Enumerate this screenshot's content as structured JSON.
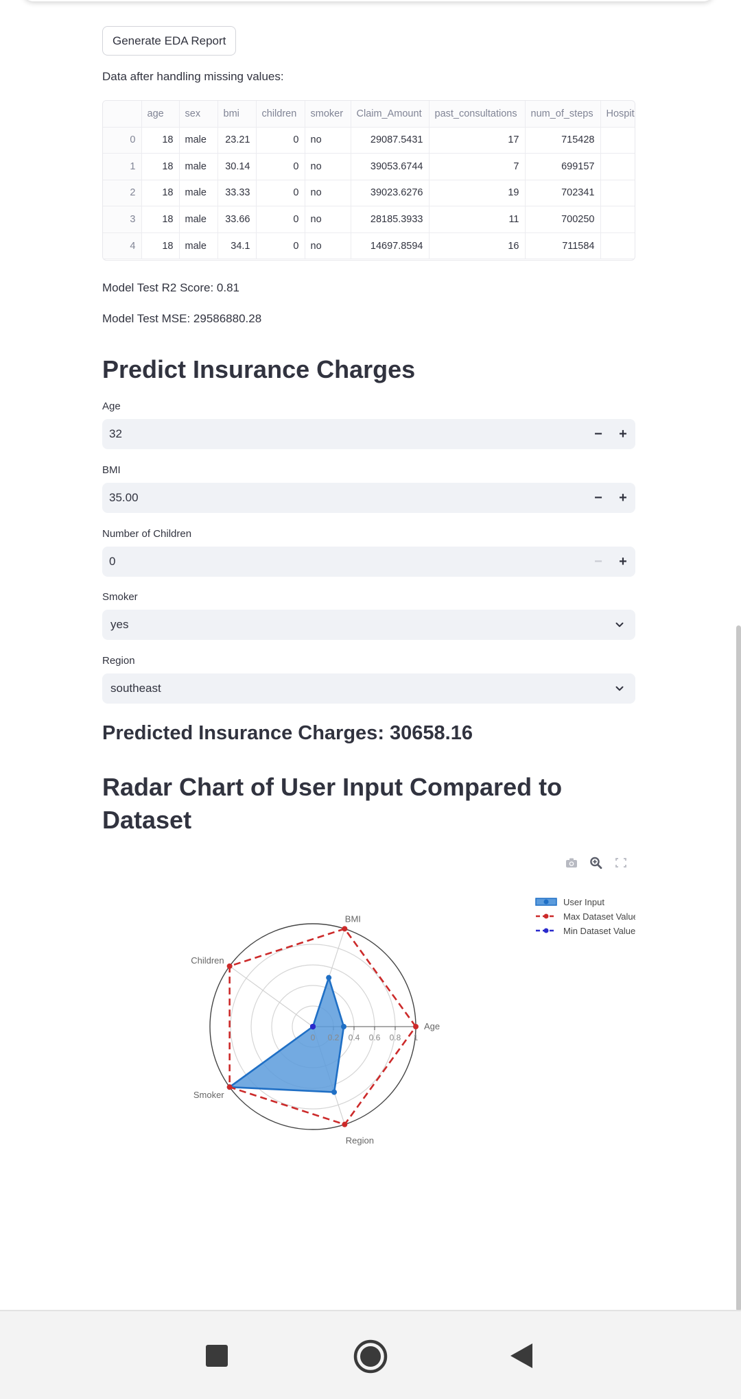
{
  "eda_button_label": "Generate EDA Report",
  "data_caption": "Data after handling missing values:",
  "dataframe": {
    "columns": [
      "",
      "age",
      "sex",
      "bmi",
      "children",
      "smoker",
      "Claim_Amount",
      "past_consultations",
      "num_of_steps",
      "Hospit"
    ],
    "rows": [
      [
        "0",
        "18",
        "male",
        "23.21",
        "0",
        "no",
        "29087.5431",
        "17",
        "715428",
        ""
      ],
      [
        "1",
        "18",
        "male",
        "30.14",
        "0",
        "no",
        "39053.6744",
        "7",
        "699157",
        ""
      ],
      [
        "2",
        "18",
        "male",
        "33.33",
        "0",
        "no",
        "39023.6276",
        "19",
        "702341",
        ""
      ],
      [
        "3",
        "18",
        "male",
        "33.66",
        "0",
        "no",
        "28185.3933",
        "11",
        "700250",
        ""
      ],
      [
        "4",
        "18",
        "male",
        "34.1",
        "0",
        "no",
        "14697.8594",
        "16",
        "711584",
        ""
      ]
    ]
  },
  "metrics": {
    "r2": "Model Test R2 Score: 0.81",
    "mse": "Model Test MSE: 29586880.28"
  },
  "predict_header": "Predict Insurance Charges",
  "form": {
    "age": {
      "label": "Age",
      "value": "32"
    },
    "bmi": {
      "label": "BMI",
      "value": "35.00"
    },
    "children": {
      "label": "Number of Children",
      "value": "0"
    },
    "smoker": {
      "label": "Smoker",
      "value": "yes"
    },
    "region": {
      "label": "Region",
      "value": "southeast"
    },
    "minus_symbol": "−",
    "plus_symbol": "+"
  },
  "prediction_text": "Predicted Insurance Charges: 30658.16",
  "radar_header_line1": "Radar Chart of User Input Compared to",
  "radar_header_line2": "Dataset",
  "colors": {
    "user": "#1f6fc5",
    "user_fill": "#5b9bdc",
    "max": "#cc2a2a",
    "min": "#2a2acc"
  },
  "icons": [
    "camera-icon",
    "zoom-icon",
    "fullscreen-icon",
    "square-icon",
    "home-circle-icon",
    "back-triangle-icon"
  ],
  "chart_data": {
    "type": "radar",
    "axes": [
      "Age",
      "BMI",
      "Children",
      "Smoker",
      "Region"
    ],
    "radial_ticks": [
      "0",
      "0.2",
      "0.4",
      "0.6",
      "0.8",
      "1"
    ],
    "radial_range": [
      0,
      1
    ],
    "legend_position": "top-right",
    "series": [
      {
        "name": "User Input",
        "values": [
          0.3,
          0.5,
          0.0,
          1.0,
          0.67
        ]
      },
      {
        "name": "Max Dataset Value",
        "values": [
          1,
          1,
          1,
          1,
          1
        ]
      },
      {
        "name": "Min Dataset Value",
        "values": [
          0,
          0,
          0,
          0,
          0
        ]
      }
    ]
  }
}
